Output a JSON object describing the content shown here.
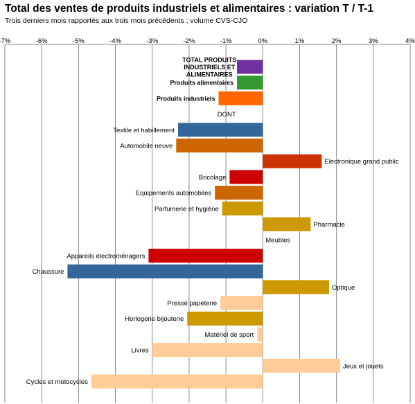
{
  "chart_data": {
    "type": "bar",
    "orientation": "horizontal",
    "title": "Total des ventes de produits industriels et alimentaires : variation T / T-1",
    "subtitle": "Trois derniers mois rapportés aux trois mois précédents ; volume CVS-CJO",
    "xlim": [
      -7,
      4
    ],
    "x_ticks": [
      "-7%",
      "-6%",
      "-5%",
      "-4%",
      "-3%",
      "-2%",
      "-1%",
      "0%",
      "1%",
      "2%",
      "3%",
      "4%"
    ],
    "grid": true,
    "legend": "none",
    "rows": [
      {
        "label": "TOTAL PRODUITS INDUSTRIELS ET ALIMENTAIRES",
        "value": -0.7,
        "color": "#7030a0",
        "bold": true
      },
      {
        "label": "Produits alimentaires",
        "value": -0.7,
        "color": "#339933",
        "bold": true
      },
      {
        "label": "Produits industriels",
        "value": -1.2,
        "color": "#ff6600",
        "bold": true
      },
      {
        "label": "DONT",
        "value": null,
        "color": null,
        "bold": false
      },
      {
        "label": "Textile et habillement",
        "value": -2.3,
        "color": "#336699",
        "bold": false
      },
      {
        "label": "Automobile neuve",
        "value": -2.35,
        "color": "#cc6600",
        "bold": false
      },
      {
        "label": "Electronique grand public",
        "value": 1.6,
        "color": "#cc3300",
        "bold": false
      },
      {
        "label": "Bricolage",
        "value": -0.9,
        "color": "#cc0000",
        "bold": false
      },
      {
        "label": "Equipements automobiles",
        "value": -1.3,
        "color": "#cc6600",
        "bold": false
      },
      {
        "label": "Parfumerie et hygiène",
        "value": -1.1,
        "color": "#cc9900",
        "bold": false
      },
      {
        "label": "Pharmacie",
        "value": 1.3,
        "color": "#cc9900",
        "bold": false
      },
      {
        "label": "Meubles",
        "value": 0.0,
        "color": "#cc9900",
        "bold": false
      },
      {
        "label": "Appareils électroménagers",
        "value": -3.1,
        "color": "#cc0000",
        "bold": false
      },
      {
        "label": "Chaussure",
        "value": -5.3,
        "color": "#336699",
        "bold": false
      },
      {
        "label": "Optique",
        "value": 1.8,
        "color": "#cc9900",
        "bold": false
      },
      {
        "label": "Presse papeterie",
        "value": -1.15,
        "color": "#ffcc99",
        "bold": false
      },
      {
        "label": "Horlogerie bijouterie",
        "value": -2.05,
        "color": "#cc9900",
        "bold": false
      },
      {
        "label": "Matériel de sport",
        "value": -0.15,
        "color": "#ffcc99",
        "bold": false
      },
      {
        "label": "Livres",
        "value": -3.0,
        "color": "#ffcc99",
        "bold": false
      },
      {
        "label": "Jeux et jouets",
        "value": 2.1,
        "color": "#ffcc99",
        "bold": false
      },
      {
        "label": "Cycles et motocycles",
        "value": -4.65,
        "color": "#ffcc99",
        "bold": false
      }
    ]
  }
}
